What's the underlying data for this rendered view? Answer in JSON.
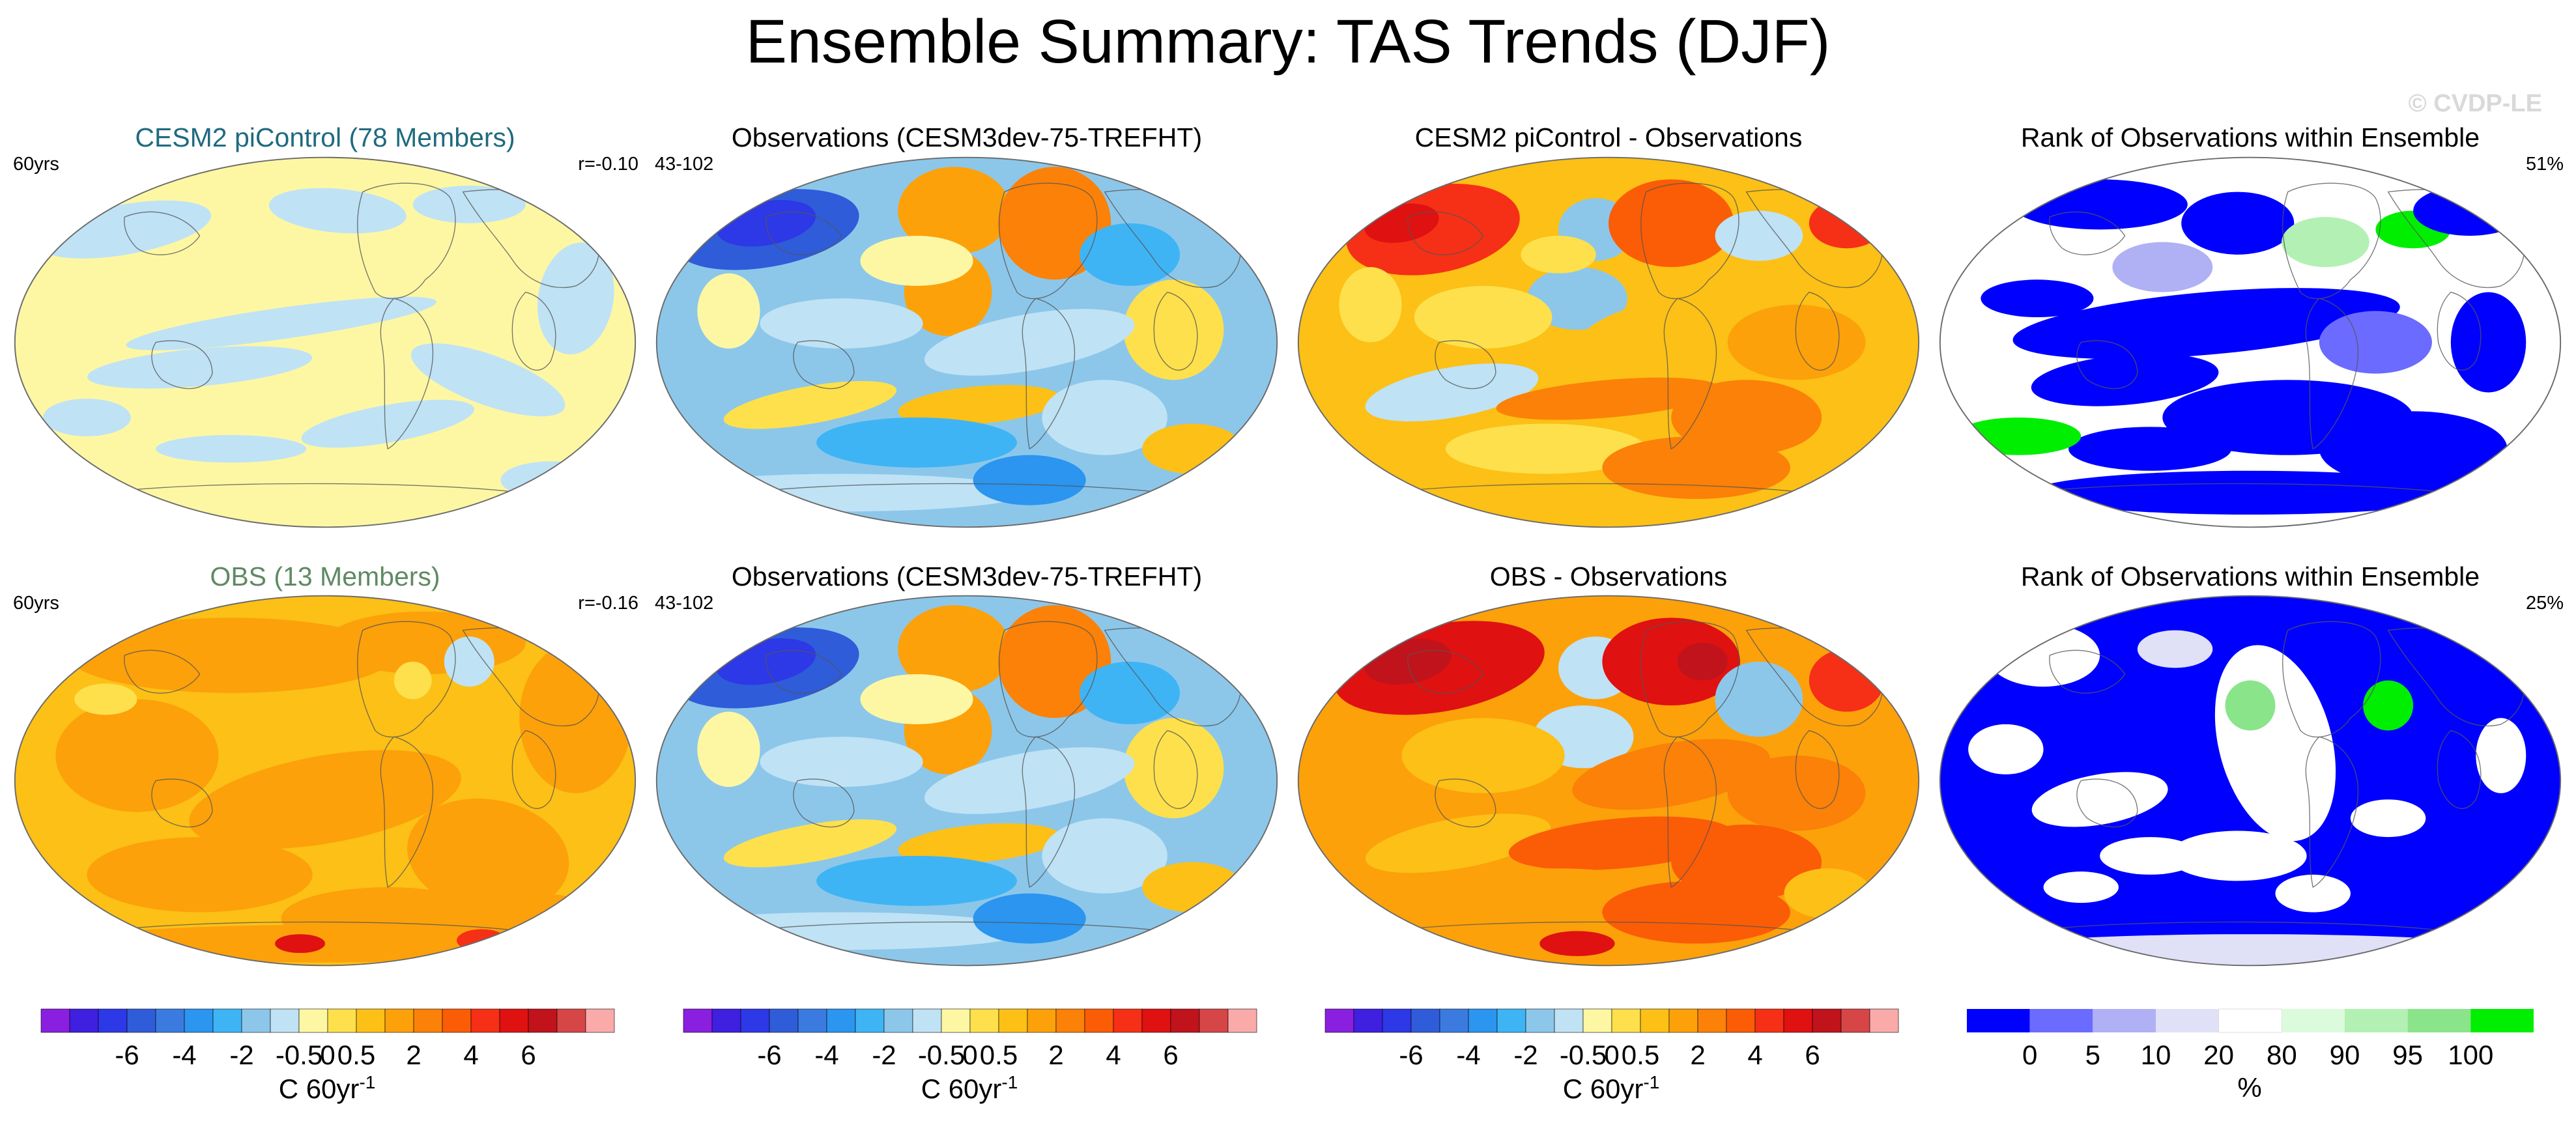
{
  "title": "Ensemble Summary: TAS Trends (DJF)",
  "watermark": "© CVDP-LE",
  "colors": {
    "ensemble_title": "#1f6b7f",
    "obs_title": "#5f8a63",
    "trend_scale": [
      "#8a1fe0",
      "#3f1fe0",
      "#2d38e6",
      "#2f5cd9",
      "#3b7be0",
      "#2b95f0",
      "#3fb4f5",
      "#8cc7ea",
      "#bfe2f5",
      "#fdf7a4",
      "#fde04c",
      "#fcc016",
      "#fca10a",
      "#fb8108",
      "#fb5c06",
      "#f53016",
      "#df1111",
      "#c1131b",
      "#d64646",
      "#f9aaa9"
    ],
    "rank_scale": [
      "#0000ff",
      "#6b6bff",
      "#b0b0f5",
      "#e0e0f7",
      "#ffffff",
      "#dcfadc",
      "#b3f0b3",
      "#8ae48a",
      "#00ee00"
    ]
  },
  "panels": [
    {
      "title": "CESM2 piControl (78 Members)",
      "left_label": "60yrs",
      "right_label": "r=-0.10",
      "map_name": "ensemble-mean-trend-map",
      "title_color": "ensemble",
      "scheme": "ens1"
    },
    {
      "title": "Observations (CESM3dev-75-TREFHT)",
      "left_label": "43-102",
      "right_label": "",
      "map_name": "observations-trend-map",
      "title_color": "plain",
      "scheme": "obs"
    },
    {
      "title": "CESM2 piControl - Observations",
      "left_label": "",
      "right_label": "",
      "map_name": "difference-trend-map",
      "title_color": "plain",
      "scheme": "diff1"
    },
    {
      "title": "Rank of Observations within Ensemble",
      "left_label": "",
      "right_label": "51%",
      "map_name": "rank-map",
      "title_color": "plain",
      "scheme": "rank1"
    },
    {
      "title": "OBS (13 Members)",
      "left_label": "60yrs",
      "right_label": "r=-0.16",
      "map_name": "ensemble-mean-trend-map",
      "title_color": "obs",
      "scheme": "ens2"
    },
    {
      "title": "Observations (CESM3dev-75-TREFHT)",
      "left_label": "43-102",
      "right_label": "",
      "map_name": "observations-trend-map",
      "title_color": "plain",
      "scheme": "obs"
    },
    {
      "title": "OBS - Observations",
      "left_label": "",
      "right_label": "",
      "map_name": "difference-trend-map",
      "title_color": "plain",
      "scheme": "diff2"
    },
    {
      "title": "Rank of Observations within Ensemble",
      "left_label": "",
      "right_label": "25%",
      "map_name": "rank-map",
      "title_color": "plain",
      "scheme": "rank2"
    }
  ],
  "chart_data": [
    {
      "type": "colorbar",
      "title": "C 60yr",
      "title_superscript": "-1",
      "tick_labels": [
        "-6",
        "-4",
        "-2",
        "-0.5",
        "0",
        "0.5",
        "2",
        "4",
        "6"
      ],
      "contour_levels": [
        -8,
        -7,
        -6,
        -5,
        -4,
        -3,
        -2,
        -1,
        -0.5,
        0,
        0.5,
        1,
        2,
        3,
        4,
        5,
        6,
        7,
        8
      ],
      "tick_values": [
        -6,
        -4,
        -2,
        -0.5,
        0,
        0.5,
        2,
        4,
        6
      ],
      "n_colors": 20
    },
    {
      "type": "colorbar",
      "title": "%",
      "tick_labels": [
        "0",
        "5",
        "10",
        "20",
        "80",
        "90",
        "95",
        "100"
      ],
      "tick_boundaries": [
        1,
        2,
        3,
        4,
        5,
        6,
        7,
        8
      ],
      "n_colors": 9
    }
  ]
}
